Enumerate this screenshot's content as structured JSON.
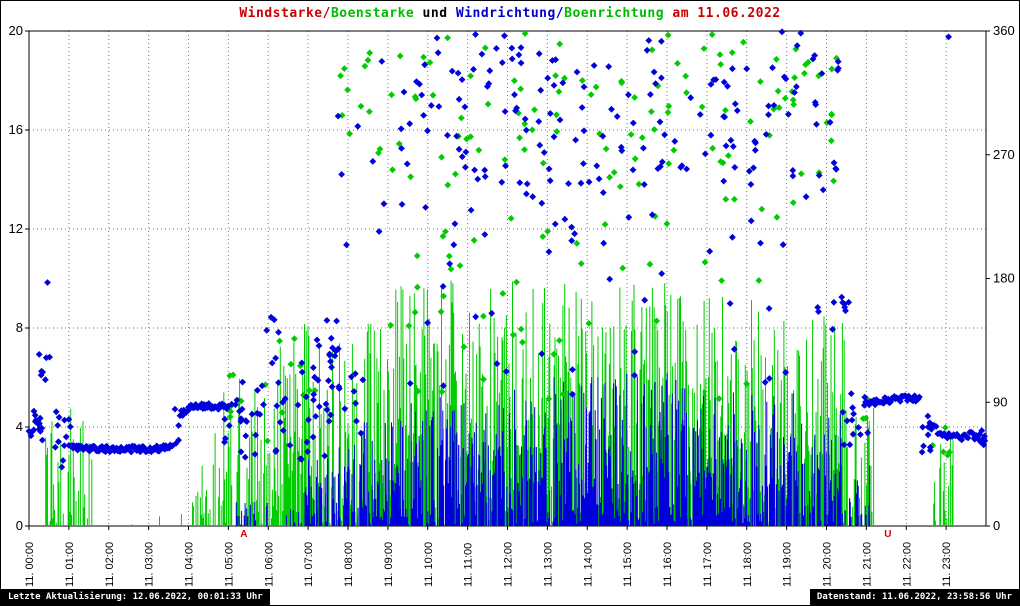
{
  "page": {
    "title_parts": [
      {
        "text": "Windstarke/",
        "color": "#cc0000"
      },
      {
        "text": "Boenstarke",
        "color": "#00bb00"
      },
      {
        "text": " und ",
        "color": "#000000"
      },
      {
        "text": "Windrichtung/",
        "color": "#0000cc"
      },
      {
        "text": "Boenrichtung",
        "color": "#00bb00"
      },
      {
        "text": " am 11.06.2022",
        "color": "#cc0000"
      }
    ],
    "footer_left": "Letzte Aktualisierung: 12.06.2022, 00:01:33 Uhr",
    "footer_right": "Datenstand: 11.06.2022, 23:58:56 Uhr"
  },
  "chart_data": {
    "type": "mixed",
    "title": "Windstarke/Boenstarke und Windrichtung/Boenrichtung am 11.06.2022",
    "x_axis": {
      "range_hours": [
        0,
        24
      ],
      "tick_labels": [
        "11. 00:00",
        "11. 01:00",
        "11. 02:00",
        "11. 03:00",
        "11. 04:00",
        "11. 05:00",
        "11. 06:00",
        "11. 07:00",
        "11. 08:00",
        "11. 09:00",
        "11. 10:00",
        "11. 11:00",
        "11. 12:00",
        "11. 13:00",
        "11. 14:00",
        "11. 15:00",
        "11. 16:00",
        "11. 17:00",
        "11. 18:00",
        "11. 19:00",
        "11. 20:00",
        "11. 21:00",
        "11. 22:00",
        "11. 23:00"
      ]
    },
    "y_left": {
      "range": [
        0,
        20
      ],
      "ticks": [
        0,
        4,
        8,
        12,
        16,
        20
      ]
    },
    "y_right": {
      "range": [
        0,
        360
      ],
      "ticks": [
        0,
        90,
        180,
        270,
        360
      ]
    },
    "grid": {
      "h_ticks": [
        4,
        8,
        12,
        16
      ],
      "v_every_hour": true,
      "style": "dotted"
    },
    "markers": [
      {
        "text": "A",
        "color": "#cc0000",
        "t": 5.39
      },
      {
        "text": "U",
        "color": "#cc0000",
        "t": 21.54
      }
    ],
    "series": [
      {
        "id": "boenstarke",
        "name": "Boenstarke",
        "kind": "impulse",
        "axis": "left",
        "color": "#00cc00",
        "seed": 101,
        "segments": [
          {
            "t0": 0.42,
            "t1": 0.88,
            "max": 5.0,
            "density": 0.55
          },
          {
            "t0": 0.98,
            "t1": 1.6,
            "max": 5.0,
            "density": 0.5
          },
          {
            "t0": 1.6,
            "t1": 4.1,
            "max": 0.5,
            "density": 0.06
          },
          {
            "t0": 4.1,
            "t1": 4.6,
            "max": 2.5,
            "density": 0.45
          },
          {
            "t0": 4.6,
            "t1": 5.4,
            "max": 6.0,
            "density": 0.55
          },
          {
            "t0": 5.4,
            "t1": 6.6,
            "max": 7.5,
            "density": 0.7
          },
          {
            "t0": 6.6,
            "t1": 8.0,
            "max": 8.3,
            "density": 0.85
          },
          {
            "t0": 8.0,
            "t1": 9.2,
            "max": 8.8,
            "density": 0.9
          },
          {
            "t0": 9.2,
            "t1": 12.4,
            "max": 10.0,
            "density": 0.95
          },
          {
            "t0": 12.4,
            "t1": 16.6,
            "max": 10.0,
            "density": 0.95
          },
          {
            "t0": 16.6,
            "t1": 19.3,
            "max": 9.3,
            "density": 0.92
          },
          {
            "t0": 19.3,
            "t1": 20.5,
            "max": 8.5,
            "density": 0.85
          },
          {
            "t0": 20.5,
            "t1": 21.2,
            "max": 5.0,
            "density": 0.5
          },
          {
            "t0": 22.6,
            "t1": 23.2,
            "max": 4.2,
            "density": 0.5
          }
        ]
      },
      {
        "id": "windstarke",
        "name": "Windstarke",
        "kind": "impulse",
        "axis": "left",
        "color": "#0000dd",
        "seed": 202,
        "segments": [
          {
            "t0": 5.2,
            "t1": 6.9,
            "max": 1.0,
            "density": 0.3
          },
          {
            "t0": 6.9,
            "t1": 8.1,
            "max": 3.2,
            "density": 0.7
          },
          {
            "t0": 8.1,
            "t1": 9.3,
            "max": 4.3,
            "density": 0.85
          },
          {
            "t0": 9.3,
            "t1": 12.0,
            "max": 5.2,
            "density": 0.95
          },
          {
            "t0": 12.0,
            "t1": 16.5,
            "max": 6.2,
            "density": 0.95
          },
          {
            "t0": 16.5,
            "t1": 19.2,
            "max": 5.4,
            "density": 0.92
          },
          {
            "t0": 19.2,
            "t1": 20.4,
            "max": 4.6,
            "density": 0.85
          },
          {
            "t0": 20.4,
            "t1": 21.15,
            "max": 2.6,
            "density": 0.5
          }
        ]
      },
      {
        "id": "boenrichtung",
        "name": "Boenrichtung",
        "kind": "scatter",
        "axis": "right",
        "color": "#00cc00",
        "seed": 303,
        "clusters": [
          [
            4.9,
            5.35,
            70,
            96,
            4
          ],
          [
            5.0,
            5.2,
            100,
            120,
            2
          ],
          [
            5.9,
            7.6,
            58,
            140,
            10
          ],
          [
            7.8,
            20.3,
            248,
            348,
            110
          ],
          [
            8.5,
            19.6,
            180,
            250,
            24
          ],
          [
            9.0,
            19.2,
            92,
            180,
            26
          ],
          [
            9.8,
            18.6,
            348,
            360,
            6
          ],
          [
            20.6,
            21.05,
            75,
            95,
            3
          ],
          [
            22.6,
            23.15,
            48,
            72,
            5
          ]
        ]
      },
      {
        "id": "windrichtung",
        "name": "Windrichtung",
        "kind": "scatter",
        "axis": "right",
        "color": "#0000dd",
        "seed": 404,
        "clusters": [
          [
            0.0,
            0.35,
            62,
            86,
            9
          ],
          [
            0.22,
            0.55,
            95,
            132,
            7
          ],
          [
            0.4,
            0.5,
            176,
            184,
            1
          ],
          [
            0.5,
            1.05,
            40,
            84,
            13
          ],
          [
            3.55,
            3.85,
            58,
            86,
            6
          ],
          [
            4.85,
            5.45,
            60,
            92,
            10
          ],
          [
            5.3,
            6.45,
            45,
            108,
            24
          ],
          [
            5.85,
            6.35,
            112,
            152,
            6
          ],
          [
            6.35,
            7.7,
            48,
            142,
            32
          ],
          [
            7.4,
            8.4,
            55,
            150,
            16
          ],
          [
            7.7,
            9.0,
            200,
            300,
            7
          ],
          [
            8.8,
            20.3,
            248,
            345,
            150
          ],
          [
            9.0,
            20.0,
            195,
            250,
            28
          ],
          [
            9.4,
            19.6,
            345,
            360,
            12
          ],
          [
            9.0,
            19.8,
            95,
            195,
            24
          ],
          [
            19.8,
            20.6,
            138,
            172,
            9
          ],
          [
            20.4,
            21.05,
            58,
            105,
            13
          ],
          [
            22.35,
            22.62,
            46,
            80,
            7
          ],
          [
            23.0,
            23.1,
            348,
            356,
            1
          ],
          [
            23.6,
            23.98,
            56,
            70,
            8
          ]
        ],
        "bands": [
          {
            "points": [
              [
                0.0,
                72
              ],
              [
                0.35,
                74
              ]
            ],
            "jitter": 5.0,
            "step": 0.04
          },
          {
            "points": [
              [
                1.05,
                57
              ],
              [
                2.0,
                56
              ],
              [
                3.0,
                56
              ],
              [
                3.55,
                57
              ]
            ],
            "jitter": 2.2,
            "step": 0.028
          },
          {
            "points": [
              [
                3.82,
                82
              ],
              [
                4.1,
                87
              ],
              [
                4.45,
                88
              ],
              [
                4.75,
                87
              ],
              [
                5.0,
                86
              ]
            ],
            "jitter": 2.4,
            "step": 0.03
          },
          {
            "points": [
              [
                20.95,
                88
              ],
              [
                21.4,
                91
              ],
              [
                21.9,
                93
              ],
              [
                22.35,
                92
              ]
            ],
            "jitter": 2.4,
            "step": 0.03
          },
          {
            "points": [
              [
                22.55,
                73
              ],
              [
                22.9,
                67
              ],
              [
                23.25,
                64
              ],
              [
                23.6,
                66
              ],
              [
                23.95,
                63
              ]
            ],
            "jitter": 3.0,
            "step": 0.04
          }
        ]
      }
    ]
  }
}
